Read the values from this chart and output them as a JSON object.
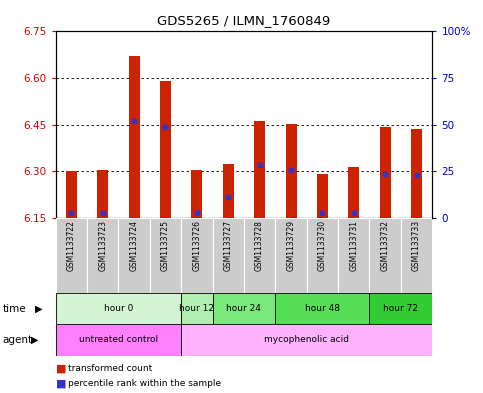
{
  "title": "GDS5265 / ILMN_1760849",
  "samples": [
    "GSM1133722",
    "GSM1133723",
    "GSM1133724",
    "GSM1133725",
    "GSM1133726",
    "GSM1133727",
    "GSM1133728",
    "GSM1133729",
    "GSM1133730",
    "GSM1133731",
    "GSM1133732",
    "GSM1133733"
  ],
  "bar_values": [
    6.3,
    6.305,
    6.67,
    6.59,
    6.305,
    6.325,
    6.462,
    6.452,
    6.292,
    6.315,
    6.442,
    6.435
  ],
  "bar_base": 6.15,
  "blue_dot_values": [
    6.168,
    6.168,
    6.462,
    6.442,
    6.168,
    6.218,
    6.322,
    6.305,
    6.168,
    6.168,
    6.292,
    6.288
  ],
  "ylim_left": [
    6.15,
    6.75
  ],
  "ylim_right": [
    0,
    100
  ],
  "yticks_left": [
    6.15,
    6.3,
    6.45,
    6.6,
    6.75
  ],
  "yticks_right": [
    0,
    25,
    50,
    75,
    100
  ],
  "ytick_labels_left": [
    "6.15",
    "6.30",
    "6.45",
    "6.60",
    "6.75"
  ],
  "ytick_labels_right": [
    "0",
    "25",
    "50",
    "75",
    "100%"
  ],
  "bar_color": "#cc2200",
  "dot_color": "#3333cc",
  "time_groups": [
    {
      "label": "hour 0",
      "start": 0,
      "end": 4,
      "color": "#d4f5d4"
    },
    {
      "label": "hour 12",
      "start": 4,
      "end": 5,
      "color": "#b0efb0"
    },
    {
      "label": "hour 24",
      "start": 5,
      "end": 7,
      "color": "#7ae87a"
    },
    {
      "label": "hour 48",
      "start": 7,
      "end": 10,
      "color": "#55dd55"
    },
    {
      "label": "hour 72",
      "start": 10,
      "end": 12,
      "color": "#33cc33"
    }
  ],
  "agent_groups": [
    {
      "label": "untreated control",
      "start": 0,
      "end": 4,
      "color": "#ff80ff"
    },
    {
      "label": "mycophenolic acid",
      "start": 4,
      "end": 12,
      "color": "#ffb3ff"
    }
  ],
  "legend_items": [
    {
      "color": "#cc2200",
      "label": "transformed count"
    },
    {
      "color": "#3333cc",
      "label": "percentile rank within the sample"
    }
  ],
  "ylabel_left_color": "#cc0000",
  "ylabel_right_color": "#0000bb",
  "bar_width": 0.35
}
